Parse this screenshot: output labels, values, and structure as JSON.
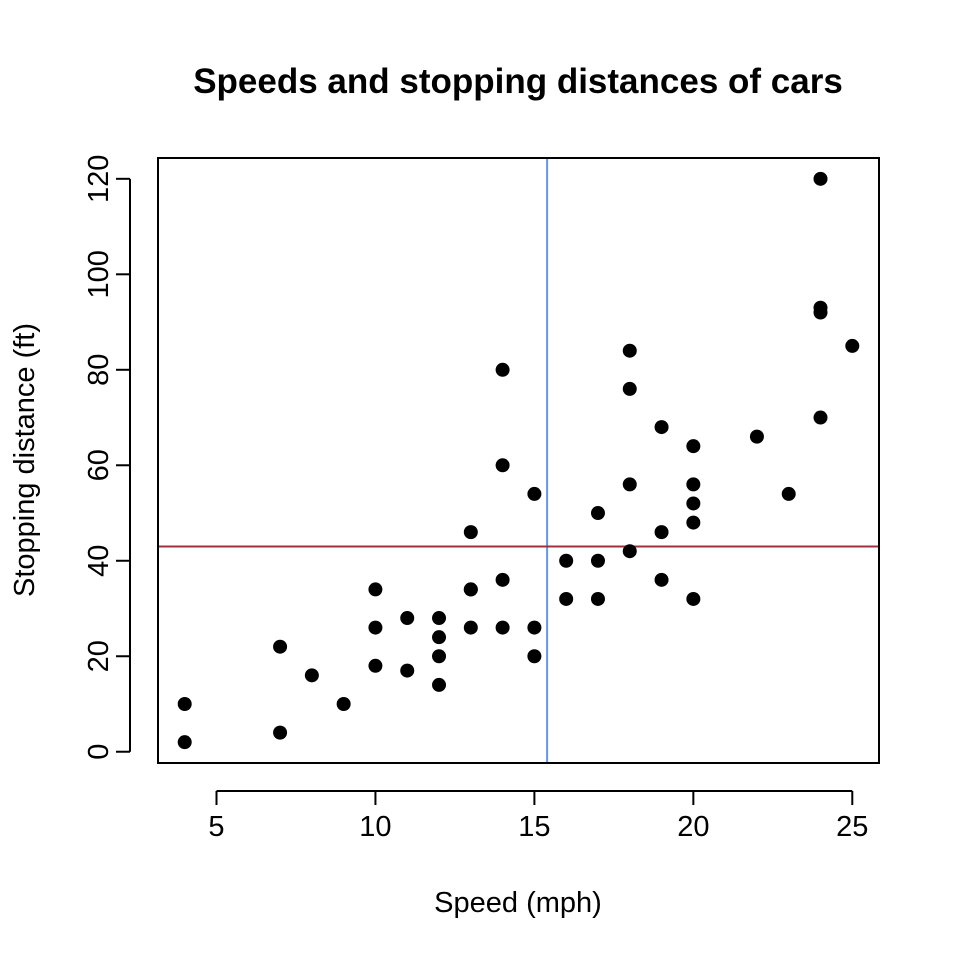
{
  "chart_data": {
    "type": "scatter",
    "title": "Speeds and stopping distances of cars",
    "xlabel": "Speed (mph)",
    "ylabel": "Stopping distance (ft)",
    "xlim": [
      3.16,
      25.84
    ],
    "ylim": [
      -2.36,
      124.36
    ],
    "xticks": [
      5,
      10,
      15,
      20,
      25
    ],
    "yticks": [
      0,
      20,
      40,
      60,
      80,
      100,
      120
    ],
    "grid": false,
    "point_color": "#000000",
    "x": [
      4,
      4,
      7,
      7,
      8,
      9,
      10,
      10,
      10,
      11,
      11,
      12,
      12,
      12,
      12,
      13,
      13,
      13,
      13,
      14,
      14,
      14,
      14,
      15,
      15,
      15,
      16,
      16,
      17,
      17,
      17,
      18,
      18,
      18,
      18,
      19,
      19,
      19,
      20,
      20,
      20,
      20,
      20,
      22,
      23,
      24,
      24,
      24,
      24,
      25
    ],
    "y": [
      2,
      10,
      4,
      22,
      16,
      10,
      18,
      26,
      34,
      17,
      28,
      14,
      20,
      24,
      28,
      26,
      34,
      34,
      46,
      26,
      36,
      60,
      80,
      20,
      26,
      54,
      32,
      40,
      32,
      40,
      50,
      42,
      56,
      76,
      84,
      36,
      46,
      68,
      32,
      48,
      52,
      56,
      64,
      66,
      54,
      70,
      92,
      93,
      120,
      85
    ],
    "reference_lines": [
      {
        "orientation": "vertical",
        "value": 15.4,
        "color": "#6495ED"
      },
      {
        "orientation": "horizontal",
        "value": 42.98,
        "color": "#A0303E"
      }
    ]
  }
}
